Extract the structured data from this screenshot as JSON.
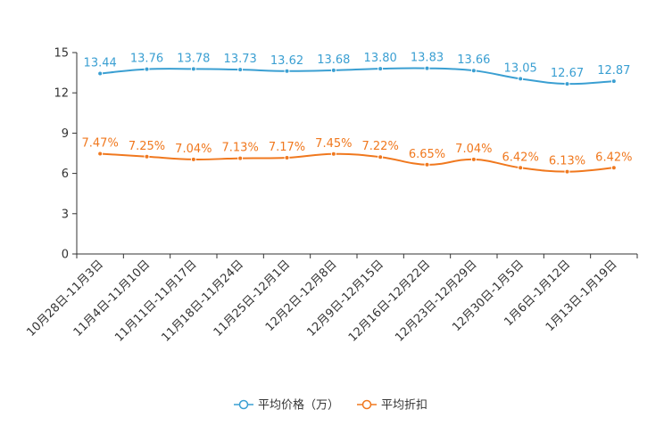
{
  "chart_data": {
    "type": "line",
    "categories": [
      "10月28日-11月3日",
      "11月4日-11月10日",
      "11月11日-11月17日",
      "11月18日-11月24日",
      "11月25日-12月1日",
      "12月2日-12月8日",
      "12月9日-12月15日",
      "12月16日-12月22日",
      "12月23日-12月29日",
      "12月30日-1月5日",
      "1月6日-1月12日",
      "1月13日-1月19日"
    ],
    "series": [
      {
        "name": "平均价格（万）",
        "color": "#3a9fd2",
        "values": [
          13.44,
          13.76,
          13.78,
          13.73,
          13.62,
          13.68,
          13.8,
          13.83,
          13.66,
          13.05,
          12.67,
          12.87
        ],
        "labels": [
          "13.44",
          "13.76",
          "13.78",
          "13.73",
          "13.62",
          "13.68",
          "13.80",
          "13.83",
          "13.66",
          "13.05",
          "12.67",
          "12.87"
        ]
      },
      {
        "name": "平均折扣",
        "color": "#f0781e",
        "values": [
          7.47,
          7.25,
          7.04,
          7.13,
          7.17,
          7.45,
          7.22,
          6.65,
          7.04,
          6.42,
          6.13,
          6.42
        ],
        "labels": [
          "7.47%",
          "7.25%",
          "7.04%",
          "7.13%",
          "7.17%",
          "7.45%",
          "7.22%",
          "6.65%",
          "7.04%",
          "6.42%",
          "6.13%",
          "6.42%"
        ]
      }
    ],
    "yticks": [
      "0",
      "3",
      "6",
      "9",
      "12",
      "15"
    ],
    "ylim": [
      0,
      15
    ],
    "legend_position": "bottom-center",
    "title": "",
    "xlabel": "",
    "ylabel": ""
  }
}
